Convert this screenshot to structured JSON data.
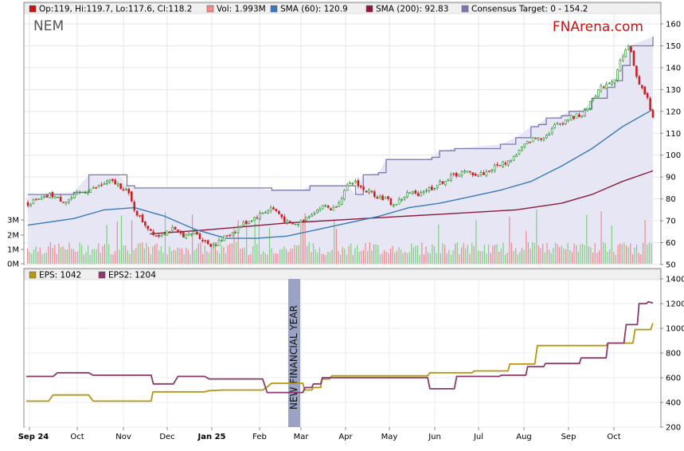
{
  "colors": {
    "sma60": "#3a7ab5",
    "sma200": "#8b1a3c",
    "consensus_fill": "#e6e6f5",
    "consensus_line": "#7a7aae",
    "eps": "#b8960f",
    "eps2": "#8b3a6b",
    "up_candle": "#1a8c1a",
    "down_candle": "#cc2020",
    "vol_up": "#7fd07f",
    "vol_down": "#f08a8a",
    "brand": "#cc1111",
    "nfy_band": "#9aa3c4"
  },
  "chart": {
    "ticker": "NEM",
    "brand": "FNArena.com",
    "new_financial_year_label": "NEW FINANCIAL YEAR",
    "months": [
      "Sep 24",
      "Oct",
      "Nov",
      "Dec",
      "Jan 25",
      "Feb",
      "Mar",
      "Apr",
      "May",
      "Jun",
      "Jul",
      "Aug",
      "Sep",
      "Oct"
    ],
    "price_legend": [
      {
        "label": "Op:119, Hi:119.7, Lo:117.6, Cl:118.2",
        "color": "#cc1111"
      },
      {
        "label": "Vol: 1.993M",
        "color": "#f08a8a"
      },
      {
        "label": "SMA (60): 120.9",
        "color": "#3a7ab5"
      },
      {
        "label": "SMA (200): 92.83",
        "color": "#8b1a3c"
      },
      {
        "label": "Consensus Target: 0 - 154.2",
        "color": "#7a7aae"
      }
    ],
    "eps_legend": [
      {
        "label": "EPS: 1042",
        "color": "#b8960f"
      },
      {
        "label": "EPS2: 1204",
        "color": "#8b3a6b"
      }
    ],
    "price_ticks": [
      "160",
      "150",
      "140",
      "130",
      "120",
      "110",
      "100",
      "90",
      "80",
      "70",
      "60",
      "50"
    ],
    "volume_ticks": [
      "3M",
      "2M",
      "1M",
      "0M"
    ],
    "eps_ticks": [
      "1400",
      "1200",
      "1000",
      "800",
      "600",
      "400",
      "200"
    ]
  },
  "chart_data": {
    "type": "line",
    "x_axis": [
      "Sep 24",
      "Oct",
      "Nov",
      "Dec",
      "Jan 25",
      "Feb",
      "Mar",
      "Apr",
      "May",
      "Jun",
      "Jul",
      "Aug",
      "Sep",
      "Oct"
    ],
    "price_panel": {
      "ylim": [
        50,
        160
      ],
      "close": [
        [
          0,
          78
        ],
        [
          1,
          79
        ],
        [
          2,
          80
        ],
        [
          3,
          82
        ],
        [
          4,
          80
        ],
        [
          5,
          79
        ],
        [
          6,
          81
        ],
        [
          7,
          83
        ],
        [
          8,
          84
        ],
        [
          9,
          85
        ],
        [
          10,
          87
        ],
        [
          11,
          88
        ],
        [
          12,
          86
        ],
        [
          13,
          84
        ],
        [
          14,
          75
        ],
        [
          15,
          70
        ],
        [
          16,
          66
        ],
        [
          17,
          63
        ],
        [
          18,
          65
        ],
        [
          19,
          66
        ],
        [
          20,
          64
        ],
        [
          21,
          63
        ],
        [
          22,
          65
        ],
        [
          23,
          61
        ],
        [
          24,
          59
        ],
        [
          25,
          60
        ],
        [
          26,
          63
        ],
        [
          27,
          65
        ],
        [
          28,
          68
        ],
        [
          29,
          70
        ],
        [
          30,
          72
        ],
        [
          31,
          74
        ],
        [
          32,
          76
        ],
        [
          33,
          73
        ],
        [
          34,
          69
        ],
        [
          35,
          68
        ],
        [
          36,
          70
        ],
        [
          37,
          73
        ],
        [
          38,
          75
        ],
        [
          39,
          77
        ],
        [
          40,
          75
        ],
        [
          41,
          80
        ],
        [
          42,
          86
        ],
        [
          43,
          88
        ],
        [
          44,
          84
        ],
        [
          45,
          83
        ],
        [
          46,
          81
        ],
        [
          47,
          80
        ],
        [
          48,
          77
        ],
        [
          49,
          80
        ],
        [
          50,
          83
        ],
        [
          51,
          82
        ],
        [
          52,
          84
        ],
        [
          53,
          85
        ],
        [
          54,
          87
        ],
        [
          55,
          89
        ],
        [
          56,
          91
        ],
        [
          57,
          92
        ],
        [
          58,
          92
        ],
        [
          59,
          91
        ],
        [
          60,
          92
        ],
        [
          61,
          94
        ],
        [
          62,
          96
        ],
        [
          63,
          97
        ],
        [
          64,
          100
        ],
        [
          65,
          104
        ],
        [
          66,
          107
        ],
        [
          67,
          108
        ],
        [
          68,
          109
        ],
        [
          69,
          113
        ],
        [
          70,
          115
        ],
        [
          71,
          117
        ],
        [
          72,
          118
        ],
        [
          73,
          119
        ],
        [
          74,
          126
        ],
        [
          75,
          130
        ],
        [
          76,
          133
        ],
        [
          77,
          135
        ],
        [
          78,
          146
        ],
        [
          79,
          150
        ],
        [
          80,
          133
        ],
        [
          81,
          128
        ],
        [
          82,
          118.2
        ]
      ],
      "sma60": [
        [
          0,
          68
        ],
        [
          6,
          71
        ],
        [
          10,
          75
        ],
        [
          14,
          76
        ],
        [
          18,
          72
        ],
        [
          22,
          66
        ],
        [
          26,
          62
        ],
        [
          30,
          62
        ],
        [
          34,
          63
        ],
        [
          38,
          66
        ],
        [
          42,
          69
        ],
        [
          46,
          72
        ],
        [
          50,
          76
        ],
        [
          54,
          78
        ],
        [
          58,
          81
        ],
        [
          62,
          84
        ],
        [
          66,
          88
        ],
        [
          70,
          95
        ],
        [
          74,
          103
        ],
        [
          78,
          113
        ],
        [
          82,
          120.9
        ]
      ],
      "sma200": [
        [
          16,
          64
        ],
        [
          24,
          66
        ],
        [
          34,
          69
        ],
        [
          44,
          71
        ],
        [
          54,
          73
        ],
        [
          64,
          75
        ],
        [
          70,
          78
        ],
        [
          74,
          82
        ],
        [
          78,
          88
        ],
        [
          82,
          92.83
        ]
      ],
      "consensus_upper": [
        [
          0,
          82
        ],
        [
          6,
          83
        ],
        [
          8,
          91
        ],
        [
          12,
          91
        ],
        [
          13,
          86
        ],
        [
          14,
          85
        ],
        [
          22,
          85
        ],
        [
          30,
          85
        ],
        [
          32,
          84
        ],
        [
          36,
          84
        ],
        [
          37,
          86
        ],
        [
          42,
          86
        ],
        [
          43,
          82
        ],
        [
          44,
          91
        ],
        [
          46,
          92
        ],
        [
          47,
          98
        ],
        [
          52,
          98
        ],
        [
          53,
          99
        ],
        [
          54,
          102
        ],
        [
          56,
          103
        ],
        [
          62,
          105
        ],
        [
          64,
          108
        ],
        [
          66,
          113
        ],
        [
          67,
          114
        ],
        [
          68,
          117
        ],
        [
          70,
          118
        ],
        [
          71,
          120
        ],
        [
          73,
          121
        ],
        [
          74,
          126
        ],
        [
          76,
          131
        ],
        [
          77,
          134
        ],
        [
          78,
          141
        ],
        [
          79,
          150
        ],
        [
          82,
          154.2
        ]
      ]
    },
    "volume_panel": {
      "ylim": [
        0,
        4
      ],
      "unit": "M"
    },
    "eps_panel": {
      "ylim": [
        200,
        1400
      ],
      "series": [
        {
          "name": "EPS",
          "values": [
            [
              0,
              410
            ],
            [
              5,
              410
            ],
            [
              6,
              460
            ],
            [
              14,
              460
            ],
            [
              15,
              410
            ],
            [
              28,
              410
            ],
            [
              28.4,
              485
            ],
            [
              40,
              485
            ],
            [
              41,
              495
            ],
            [
              44,
              500
            ],
            [
              53,
              500
            ],
            [
              54,
              525
            ],
            [
              55,
              555
            ],
            [
              62,
              555
            ],
            [
              62.4,
              500
            ],
            [
              64,
              500
            ],
            [
              64.4,
              520
            ],
            [
              66,
              520
            ],
            [
              66.3,
              590
            ],
            [
              68,
              590
            ],
            [
              68.5,
              615
            ],
            [
              90,
              615
            ],
            [
              90.5,
              640
            ],
            [
              100,
              640
            ],
            [
              100.4,
              655
            ],
            [
              108,
              655
            ],
            [
              108.4,
              710
            ],
            [
              114,
              710
            ],
            [
              114.6,
              860
            ],
            [
              130,
              860
            ],
            [
              130.4,
              880
            ],
            [
              136,
              880
            ],
            [
              136.5,
              990
            ],
            [
              140,
              990
            ],
            [
              140.5,
              1042
            ]
          ]
        },
        {
          "name": "EPS2",
          "values": [
            [
              0,
              610
            ],
            [
              6,
              610
            ],
            [
              7,
              640
            ],
            [
              14,
              640
            ],
            [
              15,
              620
            ],
            [
              28,
              620
            ],
            [
              28.5,
              550
            ],
            [
              33,
              550
            ],
            [
              34,
              610
            ],
            [
              40,
              610
            ],
            [
              41,
              590
            ],
            [
              53,
              590
            ],
            [
              54,
              480
            ],
            [
              62,
              480
            ],
            [
              62.5,
              520
            ],
            [
              64,
              520
            ],
            [
              64.4,
              550
            ],
            [
              66,
              550
            ],
            [
              66.4,
              600
            ],
            [
              90,
              600
            ],
            [
              90.5,
              510
            ],
            [
              96,
              510
            ],
            [
              96.5,
              610
            ],
            [
              106,
              610
            ],
            [
              106.5,
              620
            ],
            [
              112,
              620
            ],
            [
              112.4,
              690
            ],
            [
              116,
              690
            ],
            [
              116.4,
              715
            ],
            [
              124,
              715
            ],
            [
              124.4,
              760
            ],
            [
              130,
              760
            ],
            [
              130.4,
              880
            ],
            [
              134,
              880
            ],
            [
              134.5,
              1030
            ],
            [
              137,
              1030
            ],
            [
              137.4,
              1200
            ],
            [
              139,
              1200
            ],
            [
              139.5,
              1215
            ],
            [
              140.5,
              1204
            ]
          ]
        }
      ]
    }
  }
}
